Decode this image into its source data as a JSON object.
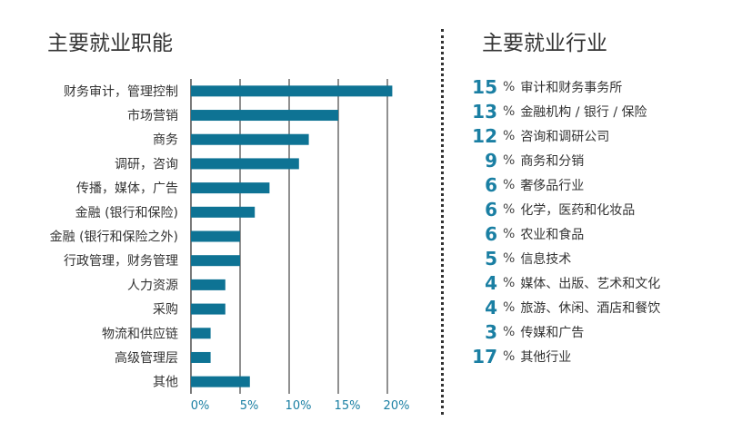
{
  "left_title": "主要就业职能",
  "right_title": "主要就业行业",
  "chart_data": {
    "type": "bar",
    "orientation": "horizontal",
    "categories": [
      "财务审计，管理控制",
      "市场营销",
      "商务",
      "调研，咨询",
      "传播，媒体，广告",
      "金融 (银行和保险)",
      "金融 (银行和保险之外)",
      "行政管理，财务管理",
      "人力资源",
      "采购",
      "物流和供应链",
      "高级管理层",
      "其他"
    ],
    "values": [
      20.5,
      15,
      12,
      11,
      8,
      6.5,
      5,
      5,
      3.5,
      3.5,
      2,
      2,
      6
    ],
    "xlim": [
      0,
      20
    ],
    "ticks": [
      "0%",
      "5%",
      "10%",
      "15%",
      "20%"
    ],
    "grid": true,
    "bar_color": "#0e7394"
  },
  "industries": [
    {
      "pct": "15",
      "sign": "%",
      "name": "审计和财务事务所"
    },
    {
      "pct": "13",
      "sign": "%",
      "name": "金融机构 / 银行 / 保险"
    },
    {
      "pct": "12",
      "sign": "%",
      "name": "咨询和调研公司"
    },
    {
      "pct": "9",
      "sign": "%",
      "name": "商务和分销"
    },
    {
      "pct": "6",
      "sign": "%",
      "name": "奢侈品行业"
    },
    {
      "pct": "6",
      "sign": "%",
      "name": "化学，医药和化妆品"
    },
    {
      "pct": "6",
      "sign": "%",
      "name": "农业和食品"
    },
    {
      "pct": "5",
      "sign": "%",
      "name": "信息技术"
    },
    {
      "pct": "4",
      "sign": "%",
      "name": "媒体、出版、艺术和文化"
    },
    {
      "pct": "4",
      "sign": "%",
      "name": "旅游、休闲、酒店和餐饮"
    },
    {
      "pct": "3",
      "sign": "%",
      "name": "传媒和广告"
    },
    {
      "pct": "17",
      "sign": "%",
      "name": "其他行业"
    }
  ],
  "accent_color": "#1a7fa3"
}
